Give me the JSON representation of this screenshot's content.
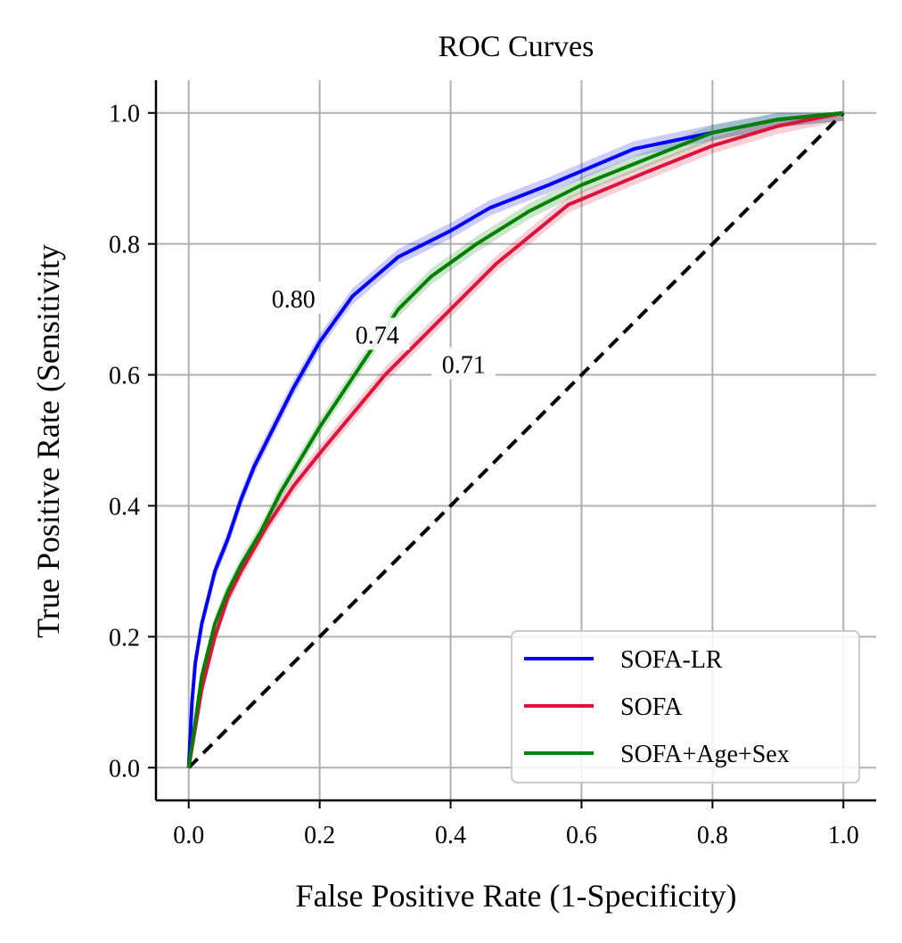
{
  "chart_data": {
    "type": "line",
    "title": "ROC Curves",
    "xlabel": "False Positive Rate (1-Specificity)",
    "ylabel": "True Positive Rate (Sensitivity",
    "xlim": [
      -0.05,
      1.05
    ],
    "ylim": [
      -0.05,
      1.05
    ],
    "xticks": [
      0.0,
      0.2,
      0.4,
      0.6,
      0.8,
      1.0
    ],
    "yticks": [
      0.0,
      0.2,
      0.4,
      0.6,
      0.8,
      1.0
    ],
    "tick_labels_x": [
      "0.0",
      "0.2",
      "0.4",
      "0.6",
      "0.8",
      "1.0"
    ],
    "tick_labels_y": [
      "0.0",
      "0.2",
      "0.4",
      "0.6",
      "0.8",
      "1.0"
    ],
    "grid": true,
    "legend_position": "bottom-right",
    "series": [
      {
        "name": "SOFA-LR",
        "color": "#0000ff",
        "band": 0.012,
        "points": [
          [
            0,
            0
          ],
          [
            0.005,
            0.1
          ],
          [
            0.01,
            0.16
          ],
          [
            0.02,
            0.22
          ],
          [
            0.03,
            0.26
          ],
          [
            0.04,
            0.3
          ],
          [
            0.06,
            0.35
          ],
          [
            0.08,
            0.41
          ],
          [
            0.1,
            0.46
          ],
          [
            0.13,
            0.52
          ],
          [
            0.16,
            0.58
          ],
          [
            0.2,
            0.65
          ],
          [
            0.25,
            0.72
          ],
          [
            0.32,
            0.78
          ],
          [
            0.4,
            0.82
          ],
          [
            0.46,
            0.855
          ],
          [
            0.55,
            0.89
          ],
          [
            0.68,
            0.945
          ],
          [
            0.8,
            0.97
          ],
          [
            0.9,
            0.99
          ],
          [
            1.0,
            1.0
          ]
        ]
      },
      {
        "name": "SOFA",
        "color": "#dc143c",
        "band": 0.012,
        "points": [
          [
            0,
            0
          ],
          [
            0.02,
            0.12
          ],
          [
            0.04,
            0.2
          ],
          [
            0.06,
            0.26
          ],
          [
            0.08,
            0.3
          ],
          [
            0.12,
            0.37
          ],
          [
            0.16,
            0.43
          ],
          [
            0.2,
            0.48
          ],
          [
            0.25,
            0.54
          ],
          [
            0.3,
            0.6
          ],
          [
            0.35,
            0.65
          ],
          [
            0.4,
            0.7
          ],
          [
            0.47,
            0.77
          ],
          [
            0.58,
            0.86
          ],
          [
            0.7,
            0.91
          ],
          [
            0.8,
            0.95
          ],
          [
            0.9,
            0.98
          ],
          [
            1.0,
            1.0
          ]
        ]
      },
      {
        "name": "SOFA+Age+Sex",
        "color": "#008000",
        "band": 0.012,
        "points": [
          [
            0,
            0
          ],
          [
            0.02,
            0.14
          ],
          [
            0.04,
            0.22
          ],
          [
            0.06,
            0.27
          ],
          [
            0.08,
            0.31
          ],
          [
            0.11,
            0.36
          ],
          [
            0.14,
            0.42
          ],
          [
            0.17,
            0.47
          ],
          [
            0.2,
            0.52
          ],
          [
            0.24,
            0.58
          ],
          [
            0.28,
            0.64
          ],
          [
            0.32,
            0.7
          ],
          [
            0.37,
            0.75
          ],
          [
            0.44,
            0.8
          ],
          [
            0.52,
            0.85
          ],
          [
            0.6,
            0.89
          ],
          [
            0.7,
            0.93
          ],
          [
            0.8,
            0.97
          ],
          [
            0.9,
            0.99
          ],
          [
            1.0,
            1.0
          ]
        ]
      }
    ],
    "reference_line": {
      "points": [
        [
          0,
          0
        ],
        [
          1,
          1
        ]
      ],
      "color": "#000000",
      "style": "dashed"
    },
    "annotations": [
      {
        "text": "0.80",
        "x": 0.16,
        "y": 0.715
      },
      {
        "text": "0.74",
        "x": 0.288,
        "y": 0.66
      },
      {
        "text": "0.71",
        "x": 0.42,
        "y": 0.615
      }
    ]
  }
}
